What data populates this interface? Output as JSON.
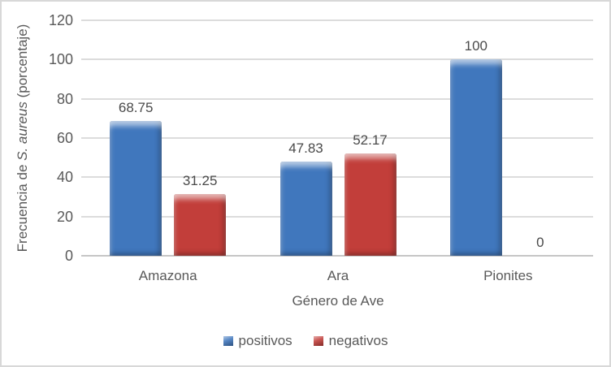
{
  "chart_data": {
    "type": "bar",
    "title": "",
    "categories": [
      "Amazona",
      "Ara",
      "Pionites"
    ],
    "series": [
      {
        "name": "positivos",
        "color": "#4077BD",
        "values": [
          68.75,
          47.83,
          100
        ],
        "labels": [
          "68.75",
          "47.83",
          "100"
        ]
      },
      {
        "name": "negativos",
        "color": "#C23E3A",
        "values": [
          31.25,
          52.17,
          0
        ],
        "labels": [
          "31.25",
          "52.17",
          "0"
        ]
      }
    ],
    "xlabel": "Género de Ave",
    "ylabel_parts": {
      "prefix": "Frecuencia de ",
      "italic": "S. aureus",
      "suffix": " (porcentaje)"
    },
    "ylim": [
      0,
      120
    ],
    "yticks": [
      0,
      20,
      40,
      60,
      80,
      100,
      120
    ],
    "ytick_labels": [
      "0",
      "20",
      "40",
      "60",
      "80",
      "100",
      "120"
    ],
    "grid": true,
    "legend_position": "bottom"
  },
  "colors": {
    "bar_positivos": "#4077BD",
    "bar_negativos": "#C23E3A",
    "gridline": "#DCDCDC",
    "axis_line": "#C6C6C6",
    "text": "#595959",
    "data_label_text": "#4A4A4A",
    "frame_border": "#D8D8D8",
    "background": "#FFFFFF"
  }
}
